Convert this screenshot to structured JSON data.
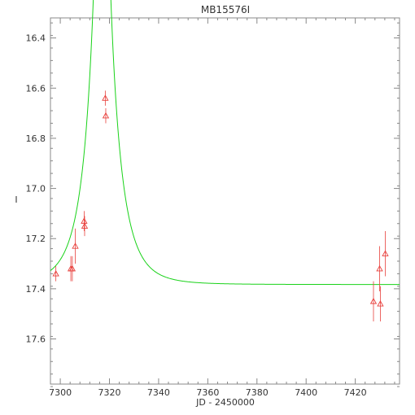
{
  "chart_data": {
    "type": "scatter",
    "title": "MB15576I",
    "xlabel": "JD - 2450000",
    "ylabel": "I",
    "xlim": [
      7296,
      7438
    ],
    "ylim": [
      17.78,
      16.32
    ],
    "y_axis_inverted": true,
    "grid": false,
    "x_ticks": [
      7300,
      7320,
      7340,
      7360,
      7380,
      7400,
      7420
    ],
    "x_tick_labels": [
      "7300",
      "7320",
      "7340",
      "7360",
      "7380",
      "7400",
      "7420"
    ],
    "y_ticks": [
      16.4,
      16.6,
      16.8,
      17.0,
      17.2,
      17.4,
      17.6
    ],
    "y_tick_labels": [
      "16.4",
      "16.6",
      "16.8",
      "17.0",
      "17.2",
      "17.4",
      "17.6"
    ],
    "series": [
      {
        "kind": "points_with_errorbars",
        "marker": "triangle",
        "color": "#e8403c",
        "x": [
          7298.2,
          7304.3,
          7304.9,
          7306.1,
          7309.7,
          7309.9,
          7318.3,
          7318.5,
          7427.4,
          7429.9,
          7430.2,
          7432.2
        ],
        "y": [
          17.34,
          17.32,
          17.32,
          17.23,
          17.13,
          17.15,
          16.64,
          16.71,
          17.45,
          17.32,
          17.46,
          17.26
        ],
        "yerr": [
          0.03,
          0.05,
          0.05,
          0.07,
          0.04,
          0.04,
          0.03,
          0.03,
          0.08,
          0.09,
          0.07,
          0.09
        ]
      },
      {
        "kind": "model_curve",
        "color": "#19d219",
        "model": {
          "t0": 7317.0,
          "u0": 0.09,
          "tE": 10.0,
          "baseline": 17.383
        }
      }
    ]
  }
}
